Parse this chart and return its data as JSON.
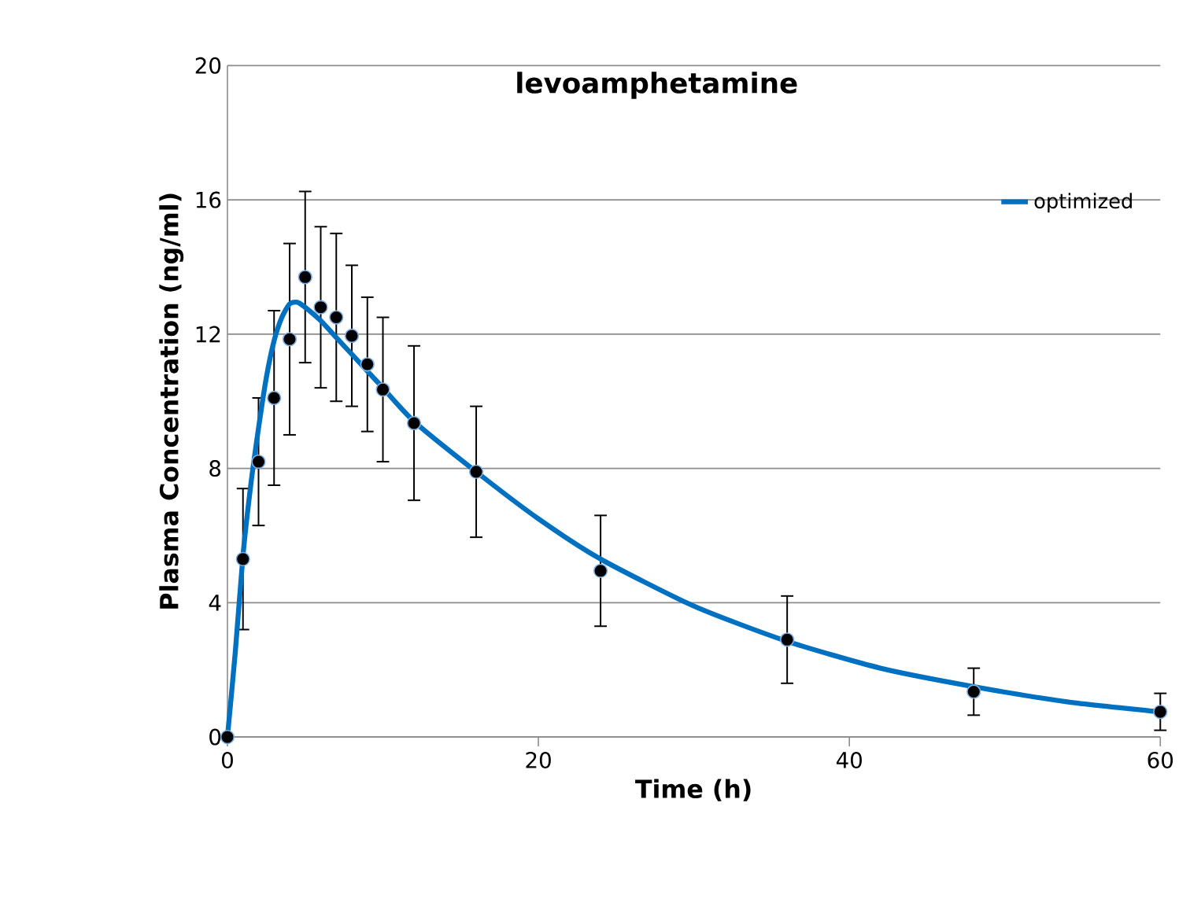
{
  "chart_data": {
    "type": "scatter",
    "title": "levoamphetamine",
    "xlabel": "Time (h)",
    "ylabel": "Plasma Concentration (ng/ml)",
    "xlim": [
      0,
      60
    ],
    "xticks": [
      0,
      20,
      40,
      60
    ],
    "ylim": [
      0,
      20
    ],
    "yticks": [
      0,
      4,
      8,
      12,
      16,
      20
    ],
    "grid": "y",
    "legend": "top right",
    "series": [
      {
        "marker": "circle",
        "color": "#000000",
        "x": [
          0,
          1,
          2,
          3,
          4,
          5,
          6,
          7,
          8,
          9,
          10,
          12,
          16,
          24,
          36,
          48,
          60
        ],
        "values": [
          0,
          5.3,
          8.2,
          10.1,
          11.85,
          13.7,
          12.8,
          12.5,
          11.95,
          11.1,
          10.35,
          9.35,
          7.9,
          4.95,
          2.9,
          1.35,
          0.75
        ],
        "errors": [
          null,
          2.1,
          1.9,
          2.6,
          2.85,
          2.55,
          2.4,
          2.5,
          2.1,
          2.0,
          2.15,
          2.3,
          1.95,
          1.65,
          1.3,
          0.7,
          0.55
        ]
      },
      {
        "type": "line",
        "name": "optimized",
        "marker": "none",
        "line_style": "solid",
        "color": "#0070c0",
        "x": [
          0,
          0.5,
          1,
          1.5,
          2,
          2.5,
          3,
          3.5,
          4,
          4.5,
          5,
          6,
          7,
          8,
          9,
          10,
          12,
          16,
          20,
          24,
          30,
          36,
          42,
          48,
          54,
          60
        ],
        "values": [
          0,
          2.5,
          5.4,
          7.5,
          9.2,
          10.7,
          11.8,
          12.5,
          12.9,
          12.95,
          12.8,
          12.4,
          11.9,
          11.4,
          10.9,
          10.4,
          9.4,
          7.9,
          6.5,
          5.3,
          3.9,
          2.85,
          2.05,
          1.5,
          1.05,
          0.75
        ]
      }
    ]
  }
}
